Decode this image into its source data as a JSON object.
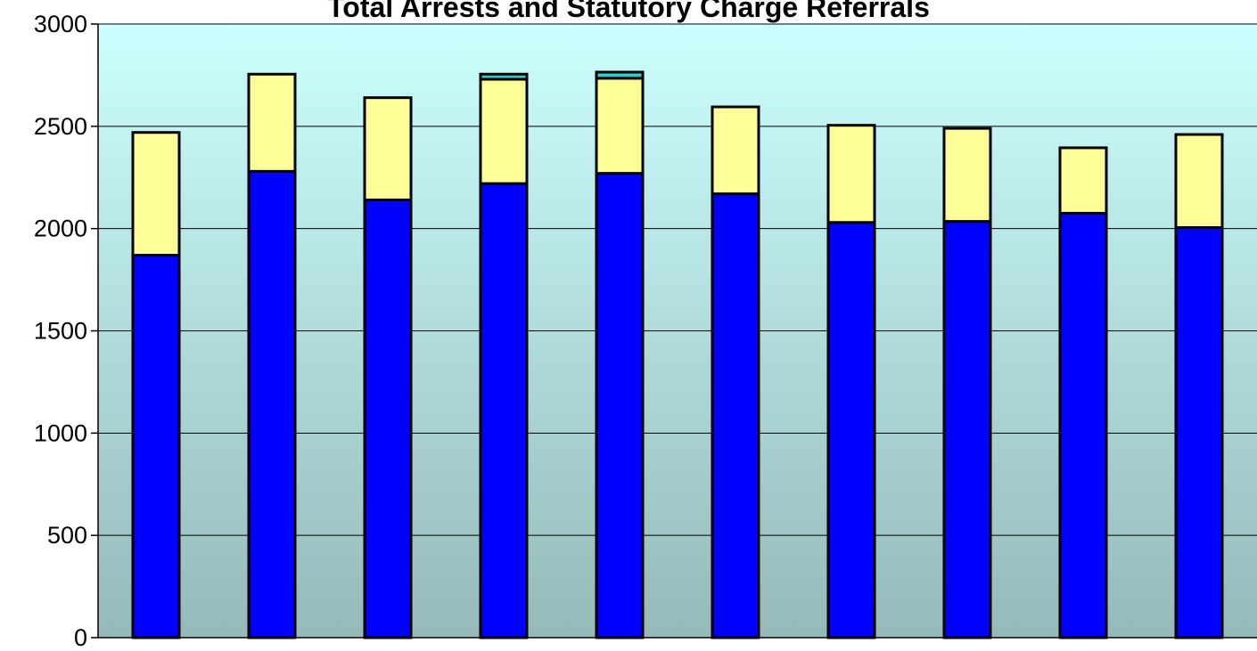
{
  "chart_data": {
    "type": "bar",
    "stacked": true,
    "title": "Total Arrests and Statutory Charge Referrals",
    "xlabel": "",
    "ylabel": "",
    "ylim": [
      0,
      3000
    ],
    "yticks": [
      0,
      500,
      1000,
      1500,
      2000,
      2500,
      3000
    ],
    "categories": [
      "",
      "",
      "",
      "",
      "",
      "",
      "",
      "",
      "",
      ""
    ],
    "grid": true,
    "legend": "none",
    "series": [
      {
        "color": "#0000ff",
        "values": [
          1870,
          2280,
          2140,
          2220,
          2270,
          2170,
          2030,
          2035,
          2075,
          2005
        ]
      },
      {
        "color": "#ffff99",
        "values": [
          600,
          475,
          500,
          510,
          465,
          425,
          475,
          455,
          320,
          455
        ]
      },
      {
        "color": "#33cccc",
        "values": [
          0,
          0,
          0,
          25,
          30,
          0,
          0,
          0,
          0,
          0
        ]
      }
    ]
  }
}
